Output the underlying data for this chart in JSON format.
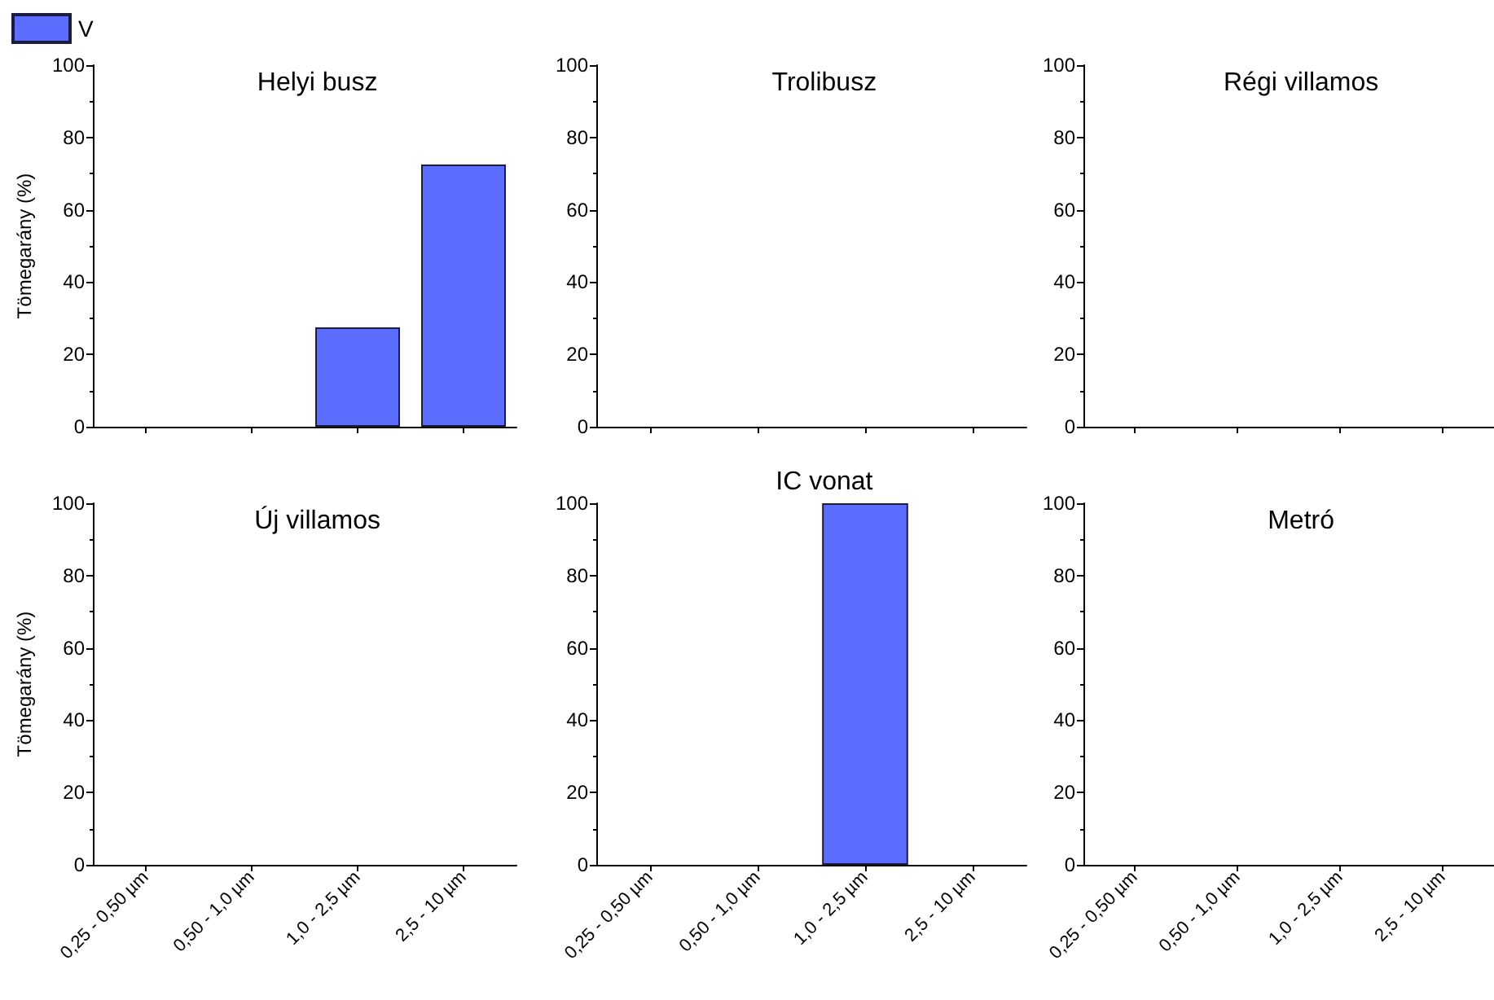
{
  "chart_data": [
    {
      "type": "bar",
      "title": "Helyi busz",
      "ylabel": "Tömegarány (%)",
      "categories": [
        null,
        null,
        null,
        null
      ],
      "series": [
        {
          "name": "V",
          "color": "#5b6eff",
          "values": [
            0,
            0,
            27.5,
            72.5
          ]
        }
      ],
      "ylim": [
        0,
        100
      ],
      "yticks": [
        0,
        20,
        40,
        60,
        80,
        100
      ],
      "legend": "top left",
      "tick_labels": "y"
    },
    {
      "type": "bar",
      "title": "Trolibusz",
      "categories": [
        null,
        null,
        null,
        null
      ],
      "series": [
        {
          "color": "#5b6eff",
          "values": [
            0,
            0,
            0,
            0
          ]
        }
      ],
      "ylim": [
        0,
        100
      ],
      "yticks": [
        0,
        20,
        40,
        60,
        80,
        100
      ],
      "tick_labels": "y"
    },
    {
      "type": "bar",
      "title": "Régi villamos",
      "categories": [
        null,
        null,
        null,
        null
      ],
      "series": [
        {
          "color": "#5b6eff",
          "values": [
            0,
            0,
            0,
            0
          ]
        }
      ],
      "ylim": [
        0,
        100
      ],
      "yticks": [
        0,
        20,
        40,
        60,
        80,
        100
      ],
      "tick_labels": "y"
    },
    {
      "type": "bar",
      "title": "Új villamos",
      "ylabel": "Tömegarány (%)",
      "categories": [
        "0,25 - 0,50 µm",
        "0,50 - 1,0 µm",
        "1,0 - 2,5 µm",
        "2,5 - 10 µm"
      ],
      "series": [
        {
          "color": "#5b6eff",
          "values": [
            0,
            0,
            0,
            0
          ]
        }
      ],
      "ylim": [
        0,
        100
      ],
      "yticks": [
        0,
        20,
        40,
        60,
        80,
        100
      ]
    },
    {
      "type": "bar",
      "title": "IC vonat",
      "categories": [
        "0,25 - 0,50 µm",
        "0,50 - 1,0 µm",
        "1,0 - 2,5 µm",
        "2,5 - 10 µm"
      ],
      "series": [
        {
          "color": "#5b6eff",
          "values": [
            0,
            0,
            100,
            0
          ]
        }
      ],
      "ylim": [
        0,
        100
      ],
      "yticks": [
        0,
        20,
        40,
        60,
        80,
        100
      ]
    },
    {
      "type": "bar",
      "title": "Metró",
      "categories": [
        "0,25 - 0,50 µm",
        "0,50 - 1,0 µm",
        "1,0 - 2,5 µm",
        "2,5 - 10 µm"
      ],
      "series": [
        {
          "color": "#5b6eff",
          "values": [
            0,
            0,
            0,
            0
          ]
        }
      ],
      "ylim": [
        0,
        100
      ],
      "yticks": [
        0,
        20,
        40,
        60,
        80,
        100
      ]
    }
  ]
}
